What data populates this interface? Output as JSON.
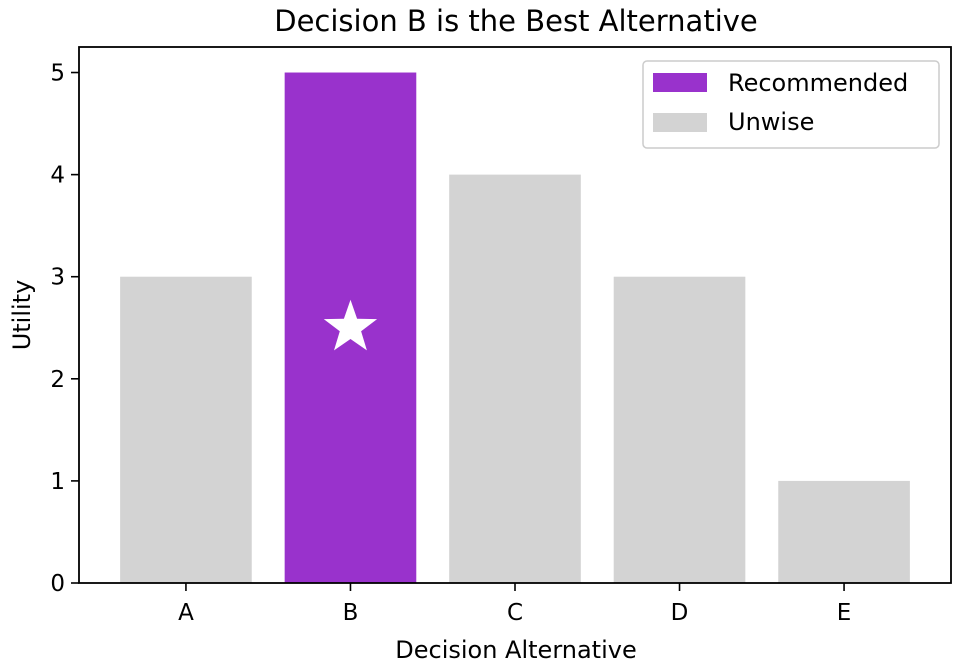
{
  "chart_data": {
    "type": "bar",
    "title": "Decision B is the Best Alternative",
    "xlabel": "Decision Alternative",
    "ylabel": "Utility",
    "categories": [
      "A",
      "B",
      "C",
      "D",
      "E"
    ],
    "values": [
      3,
      5,
      4,
      3,
      1
    ],
    "groups": [
      "Unwise",
      "Recommended",
      "Unwise",
      "Unwise",
      "Unwise"
    ],
    "ylim": [
      0,
      5.25
    ],
    "yticks": [
      0,
      1,
      2,
      3,
      4,
      5
    ],
    "legend": {
      "placement": "top-right",
      "entries": [
        {
          "label": "Recommended",
          "color": "#9932CC"
        },
        {
          "label": "Unwise",
          "color": "#D3D3D3"
        }
      ]
    },
    "annotations": [
      {
        "type": "star-marker",
        "category": "B",
        "y": 2.5,
        "color": "#ffffff"
      }
    ],
    "grid": false
  }
}
